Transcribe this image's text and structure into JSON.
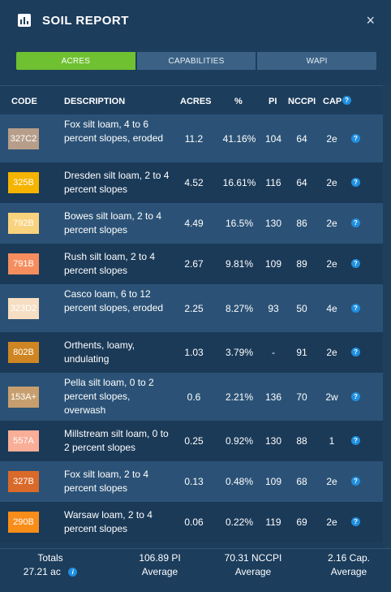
{
  "header": {
    "title": "SOIL REPORT",
    "close_icon": "×"
  },
  "tabs": [
    {
      "label": "ACRES",
      "active": true
    },
    {
      "label": "CAPABILITIES",
      "active": false
    },
    {
      "label": "WAPI",
      "active": false
    }
  ],
  "table": {
    "columns": [
      "CODE",
      "DESCRIPTION",
      "ACRES",
      "%",
      "PI",
      "NCCPI",
      "CAP"
    ],
    "help_icon": "?",
    "rows": [
      {
        "code": "327C2",
        "color": "#b79e8a",
        "description": "Fox silt loam, 4 to 6 percent slopes, eroded",
        "acres": "11.2",
        "percent": "41.16%",
        "pi": "104",
        "nccpi": "64",
        "cap": "2e"
      },
      {
        "code": "325B",
        "color": "#f5b400",
        "description": "Dresden silt loam, 2 to 4 percent slopes",
        "acres": "4.52",
        "percent": "16.61%",
        "pi": "116",
        "nccpi": "64",
        "cap": "2e"
      },
      {
        "code": "792B",
        "color": "#f9d27e",
        "description": "Bowes silt loam, 2 to 4 percent slopes",
        "acres": "4.49",
        "percent": "16.5%",
        "pi": "130",
        "nccpi": "86",
        "cap": "2e"
      },
      {
        "code": "791B",
        "color": "#f58d5e",
        "description": "Rush silt loam, 2 to 4 percent slopes",
        "acres": "2.67",
        "percent": "9.81%",
        "pi": "109",
        "nccpi": "89",
        "cap": "2e"
      },
      {
        "code": "323D2",
        "color": "#f6dec2",
        "description": "Casco loam, 6 to 12 percent slopes, eroded",
        "acres": "2.25",
        "percent": "8.27%",
        "pi": "93",
        "nccpi": "50",
        "cap": "4e"
      },
      {
        "code": "802B",
        "color": "#cf8622",
        "description": "Orthents, loamy, undulating",
        "acres": "1.03",
        "percent": "3.79%",
        "pi": "-",
        "nccpi": "91",
        "cap": "2e"
      },
      {
        "code": "153A+",
        "color": "#c79f6e",
        "description": "Pella silt loam, 0 to 2 percent slopes, overwash",
        "acres": "0.6",
        "percent": "2.21%",
        "pi": "136",
        "nccpi": "70",
        "cap": "2w"
      },
      {
        "code": "557A",
        "color": "#f9ae98",
        "description": "Millstream silt loam, 0 to 2 percent slopes",
        "acres": "0.25",
        "percent": "0.92%",
        "pi": "130",
        "nccpi": "88",
        "cap": "1"
      },
      {
        "code": "327B",
        "color": "#d96a2a",
        "description": "Fox silt loam, 2 to 4 percent slopes",
        "acres": "0.13",
        "percent": "0.48%",
        "pi": "109",
        "nccpi": "68",
        "cap": "2e"
      },
      {
        "code": "290B",
        "color": "#f98d1a",
        "description": "Warsaw loam, 2 to 4 percent slopes",
        "acres": "0.06",
        "percent": "0.22%",
        "pi": "119",
        "nccpi": "69",
        "cap": "2e"
      }
    ]
  },
  "footer": {
    "totals_label": "Totals",
    "totals_acres": "27.21 ac",
    "pi_line1": "106.89 PI",
    "pi_line2": "Average",
    "nccpi_line1": "70.31 NCCPI",
    "nccpi_line2": "Average",
    "cap_line1": "2.16 Cap.",
    "cap_line2": "Average",
    "info_icon": "i"
  }
}
